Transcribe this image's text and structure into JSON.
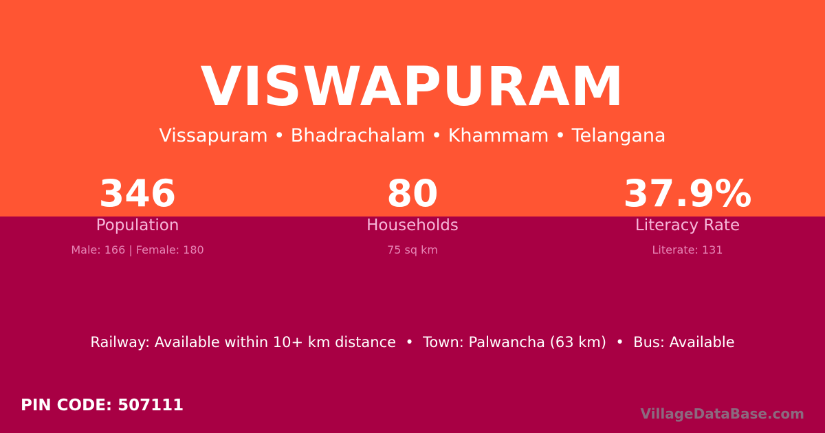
{
  "colors": {
    "top": "#ff5533",
    "bottom": "#a80044"
  },
  "title": "VISWAPURAM",
  "subtitle": "Vissapuram • Bhadrachalam • Khammam • Telangana",
  "stats": [
    {
      "value": "346",
      "label": "Population",
      "detail": "Male: 166 | Female: 180"
    },
    {
      "value": "80",
      "label": "Households",
      "detail": "75 sq km"
    },
    {
      "value": "37.9%",
      "label": "Literacy Rate",
      "detail": "Literate: 131"
    }
  ],
  "info": "Railway: Available within 10+ km distance  •  Town: Palwancha (63 km)  •  Bus: Available",
  "pin": "PIN CODE: 507111",
  "brand": "VillageDataBase.com"
}
